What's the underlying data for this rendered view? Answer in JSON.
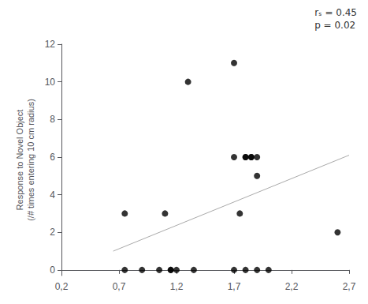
{
  "chart_data": {
    "type": "scatter",
    "ylabel": "Response to Novel Object\n(/# times entering 10 cm radius)",
    "annotation": "rₛ = 0.45\np = 0.02",
    "series": [
      {
        "type": "scatter",
        "color": "#000000",
        "x": [
          0.75,
          0.75,
          0.9,
          1.05,
          1.15,
          1.15,
          1.3,
          1.35,
          1.7,
          1.7,
          1.75,
          1.8,
          1.8,
          1.85,
          1.85,
          1.9,
          1.9,
          1.9,
          2.0,
          2.6,
          1.1,
          1.2,
          1.7,
          1.8
        ],
        "values": [
          3,
          0,
          0,
          0,
          0,
          0,
          10,
          0,
          11,
          6,
          3,
          6,
          6,
          6,
          6,
          5,
          6,
          0,
          0,
          2,
          3,
          0,
          0,
          0
        ]
      },
      {
        "type": "line",
        "color": "#aaaaaa",
        "x": [
          0.65,
          2.7
        ],
        "values": [
          1.0,
          6.1
        ]
      }
    ],
    "xlim": [
      0.2,
      2.7
    ],
    "ylim": [
      -0.3,
      12
    ],
    "xticks": [
      {
        "value": 0.2,
        "label": "0,2"
      },
      {
        "value": 0.7,
        "label": "0,7"
      },
      {
        "value": 1.2,
        "label": "1,2"
      },
      {
        "value": 1.7,
        "label": "1,7"
      },
      {
        "value": 2.2,
        "label": "2,2"
      },
      {
        "value": 2.7,
        "label": "2,7"
      }
    ],
    "yticks": [
      0,
      2,
      4,
      6,
      8,
      10,
      12
    ],
    "grid": false
  }
}
